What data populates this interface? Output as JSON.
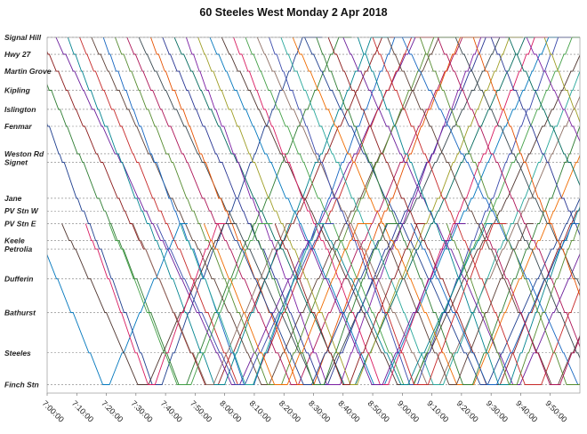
{
  "chart_data": {
    "type": "line",
    "title": "60  Steeles  West Monday  2 Apr 2018",
    "xlabel": "",
    "ylabel": "",
    "x_ticks": [
      "7:00:00",
      "7:10:00",
      "7:20:00",
      "7:30:00",
      "7:40:00",
      "7:50:00",
      "8:00:00",
      "8:10:00",
      "8:20:00",
      "8:30:00",
      "8:40:00",
      "8:50:00",
      "9:00:00",
      "9:10:00",
      "9:20:00",
      "9:30:00",
      "9:40:00",
      "9:50:00"
    ],
    "xlim": [
      "7:00:00",
      "10:00:00"
    ],
    "stops": [
      {
        "name": "Signal Hill",
        "km": 0.0
      },
      {
        "name": "Hwy 27",
        "km": 0.8
      },
      {
        "name": "Martin Grove",
        "km": 1.6
      },
      {
        "name": "Kipling",
        "km": 2.5
      },
      {
        "name": "Islington",
        "km": 3.4
      },
      {
        "name": "Fenmar",
        "km": 4.2
      },
      {
        "name": "Weston Rd",
        "km": 5.5
      },
      {
        "name": "Signet",
        "km": 5.9
      },
      {
        "name": "Jane",
        "km": 7.6
      },
      {
        "name": "PV Stn W",
        "km": 8.2
      },
      {
        "name": "PV Stn E",
        "km": 8.8
      },
      {
        "name": "Keele",
        "km": 9.6
      },
      {
        "name": "Petrolia",
        "km": 10.0
      },
      {
        "name": "Dufferin",
        "km": 11.4
      },
      {
        "name": "Bathurst",
        "km": 13.0
      },
      {
        "name": "Steeles",
        "km": 14.9
      },
      {
        "name": "Finch Stn",
        "km": 16.4
      }
    ],
    "ylim": [
      0,
      16.8
    ],
    "grid": "dotted horizontal at stops",
    "legend": "none",
    "colors": [
      "#1f3f8f",
      "#2e7d32",
      "#8b1a1a",
      "#6a1b9a",
      "#00838f",
      "#c62828",
      "#5d4037",
      "#1565c0",
      "#558b2f",
      "#ad1457",
      "#37474f",
      "#e65100",
      "#283593",
      "#00695c",
      "#7b1fa2",
      "#9e9d24",
      "#0277bd",
      "#4e342e",
      "#d81b60",
      "#43a047",
      "#8d6e63",
      "#3949ab",
      "#26a69a",
      "#ef6c00"
    ],
    "series": [
      {
        "depart": "6:48",
        "wait": 3,
        "pattern": "full"
      },
      {
        "depart": "6:53",
        "wait": 2,
        "pattern": "full"
      },
      {
        "depart": "6:58",
        "wait": 4,
        "pattern": "full"
      },
      {
        "depart": "7:03",
        "wait": 2,
        "pattern": "full"
      },
      {
        "depart": "7:07",
        "wait": 3,
        "pattern": "full"
      },
      {
        "depart": "7:11",
        "wait": 5,
        "pattern": "full"
      },
      {
        "depart": "7:15",
        "wait": 2,
        "pattern": "full"
      },
      {
        "depart": "7:19",
        "wait": 3,
        "pattern": "full"
      },
      {
        "depart": "7:23",
        "wait": 4,
        "pattern": "full"
      },
      {
        "depart": "7:27",
        "wait": 2,
        "pattern": "full"
      },
      {
        "depart": "7:31",
        "wait": 3,
        "pattern": "full"
      },
      {
        "depart": "7:35",
        "wait": 5,
        "pattern": "full"
      },
      {
        "depart": "7:39",
        "wait": 2,
        "pattern": "full"
      },
      {
        "depart": "7:43",
        "wait": 3,
        "pattern": "full"
      },
      {
        "depart": "7:47",
        "wait": 4,
        "pattern": "full"
      },
      {
        "depart": "7:51",
        "wait": 2,
        "pattern": "full"
      },
      {
        "depart": "7:55",
        "wait": 3,
        "pattern": "full"
      },
      {
        "depart": "7:59",
        "wait": 5,
        "pattern": "full"
      },
      {
        "depart": "8:03",
        "wait": 2,
        "pattern": "full"
      },
      {
        "depart": "8:07",
        "wait": 3,
        "pattern": "full"
      },
      {
        "depart": "8:11",
        "wait": 4,
        "pattern": "full"
      },
      {
        "depart": "8:15",
        "wait": 2,
        "pattern": "full"
      },
      {
        "depart": "8:19",
        "wait": 3,
        "pattern": "full"
      },
      {
        "depart": "8:23",
        "wait": 5,
        "pattern": "full"
      },
      {
        "depart": "8:27",
        "wait": 2,
        "pattern": "full"
      },
      {
        "depart": "8:31",
        "wait": 3,
        "pattern": "full"
      },
      {
        "depart": "8:35",
        "wait": 4,
        "pattern": "full"
      },
      {
        "depart": "8:40",
        "wait": 2,
        "pattern": "full"
      },
      {
        "depart": "8:45",
        "wait": 3,
        "pattern": "full"
      },
      {
        "depart": "8:50",
        "wait": 5,
        "pattern": "full"
      },
      {
        "depart": "8:55",
        "wait": 2,
        "pattern": "full"
      },
      {
        "depart": "9:00",
        "wait": 3,
        "pattern": "full"
      },
      {
        "depart": "9:06",
        "wait": 4,
        "pattern": "full"
      },
      {
        "depart": "9:12",
        "wait": 2,
        "pattern": "full"
      },
      {
        "depart": "9:18",
        "wait": 3,
        "pattern": "full"
      },
      {
        "depart": "9:24",
        "wait": 5,
        "pattern": "full"
      },
      {
        "depart": "9:30",
        "wait": 2,
        "pattern": "full"
      },
      {
        "depart": "9:36",
        "wait": 3,
        "pattern": "full"
      },
      {
        "depart": "9:42",
        "wait": 4,
        "pattern": "full"
      },
      {
        "depart": "9:48",
        "wait": 2,
        "pattern": "full"
      },
      {
        "depart": "6:55",
        "wait": 2,
        "pattern": "short"
      },
      {
        "depart": "7:05",
        "wait": 3,
        "pattern": "short"
      },
      {
        "depart": "7:13",
        "wait": 2,
        "pattern": "short"
      },
      {
        "depart": "7:21",
        "wait": 4,
        "pattern": "short"
      },
      {
        "depart": "7:29",
        "wait": 2,
        "pattern": "short"
      },
      {
        "depart": "7:37",
        "wait": 3,
        "pattern": "short"
      },
      {
        "depart": "7:45",
        "wait": 2,
        "pattern": "short"
      },
      {
        "depart": "7:53",
        "wait": 4,
        "pattern": "short"
      },
      {
        "depart": "8:01",
        "wait": 2,
        "pattern": "short"
      },
      {
        "depart": "8:09",
        "wait": 3,
        "pattern": "short"
      },
      {
        "depart": "8:17",
        "wait": 2,
        "pattern": "short"
      },
      {
        "depart": "8:25",
        "wait": 3,
        "pattern": "short"
      },
      {
        "depart": "8:33",
        "wait": 2,
        "pattern": "short"
      },
      {
        "depart": "8:42",
        "wait": 4,
        "pattern": "short"
      },
      {
        "depart": "8:52",
        "wait": 2,
        "pattern": "short"
      },
      {
        "depart": "9:03",
        "wait": 3,
        "pattern": "short"
      },
      {
        "depart": "9:15",
        "wait": 2,
        "pattern": "short"
      },
      {
        "depart": "9:27",
        "wait": 3,
        "pattern": "short"
      },
      {
        "depart": "9:39",
        "wait": 2,
        "pattern": "short"
      }
    ]
  }
}
